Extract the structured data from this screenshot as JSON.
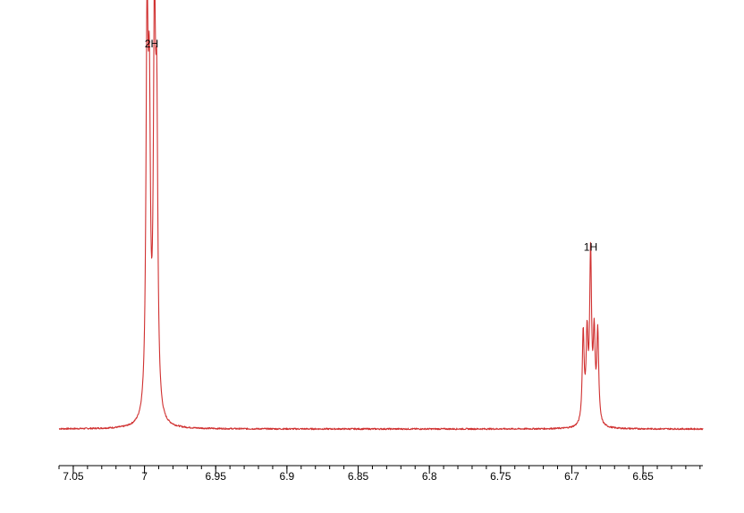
{
  "chart_data": {
    "type": "line",
    "title": "",
    "xlabel": "",
    "ylabel": "",
    "x_axis_reversed": true,
    "xlim": [
      7.06,
      6.608
    ],
    "ylim": [
      0,
      1
    ],
    "grid": false,
    "line_color": "#d03030",
    "axis_color": "#000000",
    "tick_labels": [
      "7.05",
      "7",
      "6.95",
      "6.9",
      "6.85",
      "6.8",
      "6.75",
      "6.7",
      "6.65"
    ],
    "tick_values": [
      7.05,
      7.0,
      6.95,
      6.9,
      6.85,
      6.8,
      6.75,
      6.7,
      6.65
    ],
    "minor_tick_step": 0.01,
    "baseline": 0.0,
    "peaks": [
      {
        "center": 6.9982,
        "height": 0.98,
        "width": 0.0009
      },
      {
        "center": 6.9966,
        "height": 0.72,
        "width": 0.0009
      },
      {
        "center": 6.993,
        "height": 0.98,
        "width": 0.0009
      },
      {
        "center": 6.9914,
        "height": 0.72,
        "width": 0.0009
      },
      {
        "center": 6.692,
        "height": 0.24,
        "width": 0.0008
      },
      {
        "center": 6.6893,
        "height": 0.22,
        "width": 0.0008
      },
      {
        "center": 6.6868,
        "height": 0.44,
        "width": 0.0008
      },
      {
        "center": 6.6843,
        "height": 0.22,
        "width": 0.0008
      },
      {
        "center": 6.6818,
        "height": 0.24,
        "width": 0.0008
      }
    ],
    "annotations": [
      {
        "text": "2H",
        "x": 6.995,
        "y": 1.0
      },
      {
        "text": "1H",
        "x": 6.6868,
        "y": 0.465
      }
    ]
  }
}
